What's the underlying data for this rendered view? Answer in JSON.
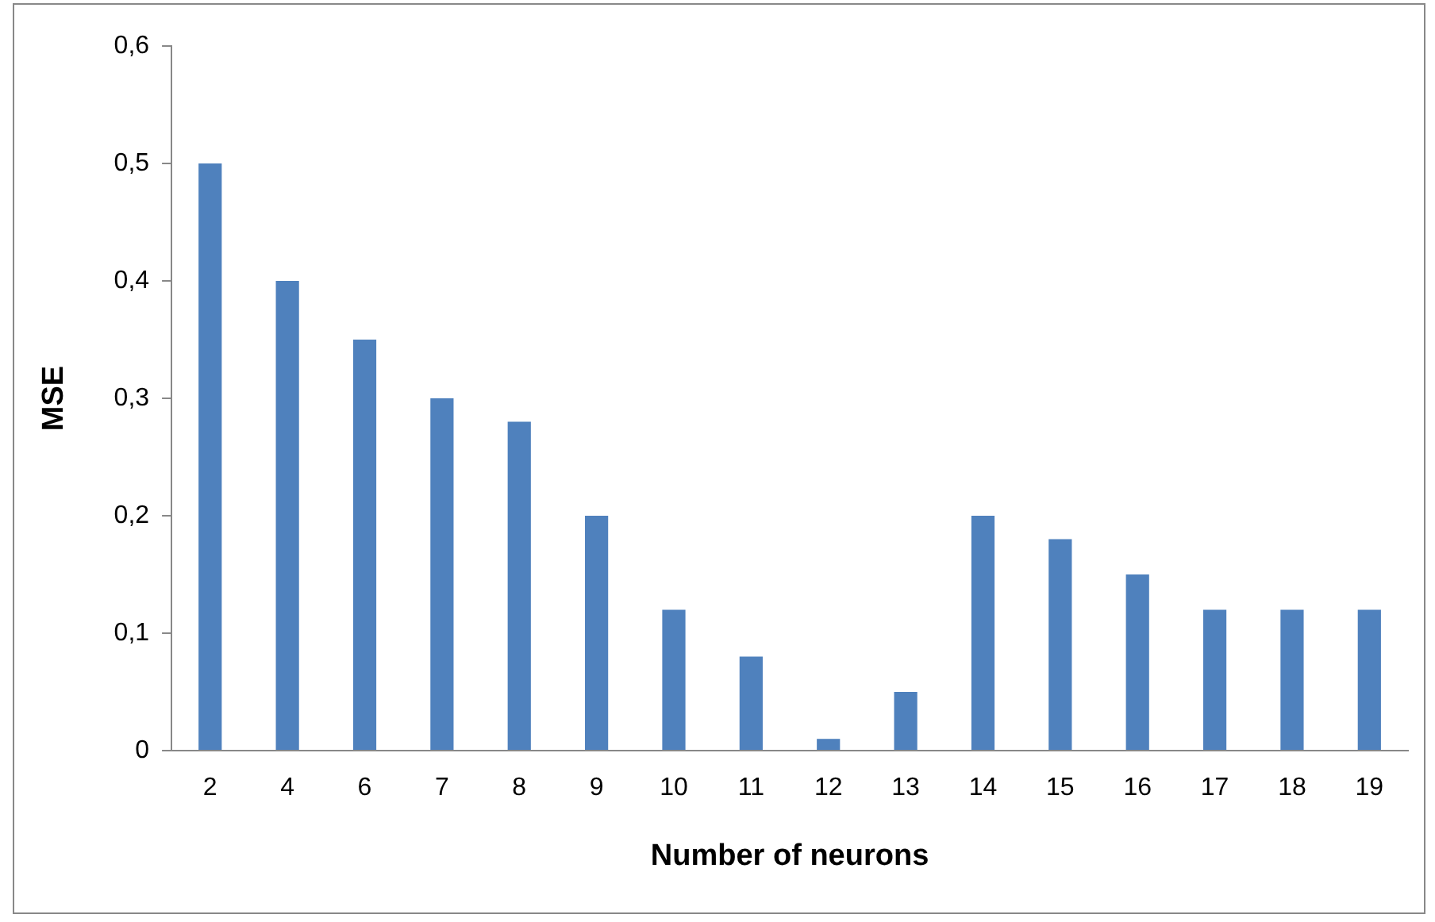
{
  "chart_data": {
    "type": "bar",
    "xlabel": "Number of neurons",
    "ylabel": "MSE",
    "categories": [
      "2",
      "4",
      "6",
      "7",
      "8",
      "9",
      "10",
      "11",
      "12",
      "13",
      "14",
      "15",
      "16",
      "17",
      "18",
      "19"
    ],
    "values": [
      0.5,
      0.4,
      0.35,
      0.3,
      0.28,
      0.2,
      0.12,
      0.08,
      0.01,
      0.05,
      0.2,
      0.18,
      0.15,
      0.12,
      0.12,
      0.12
    ],
    "color": "#4f81bd",
    "ylim": [
      0,
      0.6
    ],
    "yticks": [
      0,
      {
        "value": 0.1,
        "label": "0,1"
      },
      {
        "value": 0.2,
        "label": "0,2"
      },
      {
        "value": 0.3,
        "label": "0,3"
      },
      {
        "value": 0.4,
        "label": "0,4"
      },
      {
        "value": 0.5,
        "label": "0,5"
      },
      {
        "value": 0.6,
        "label": "0,6"
      }
    ],
    "grid": false,
    "legend": false
  }
}
